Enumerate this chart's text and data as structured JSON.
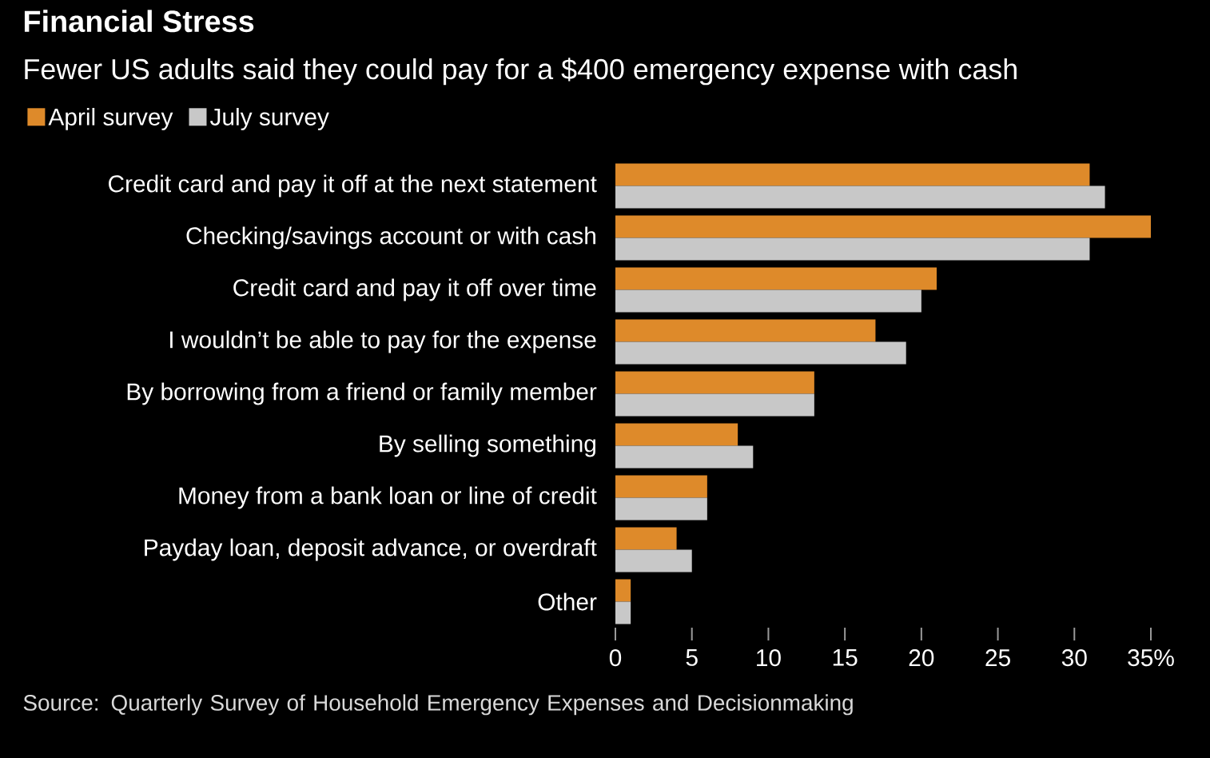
{
  "chart_data": {
    "type": "bar",
    "orientation": "horizontal",
    "title": "Financial Stress",
    "subtitle": "Fewer US adults said they could pay for a $400 emergency expense with cash",
    "categories": [
      "Credit card and pay it off at the next statement",
      "Checking/savings account or with cash",
      "Credit card and pay it off over time",
      "I wouldn’t be able to pay for the expense",
      "By borrowing from a friend or family member",
      "By selling something",
      "Money from a bank loan or line of credit",
      "Payday loan, deposit advance, or overdraft",
      "Other"
    ],
    "series": [
      {
        "name": "April survey",
        "color": "#de8a2a",
        "values": [
          31,
          35,
          21,
          17,
          13,
          8,
          6,
          4,
          1
        ]
      },
      {
        "name": "July survey",
        "color": "#c8c8c8",
        "values": [
          32,
          31,
          20,
          19,
          13,
          9,
          6,
          5,
          1
        ]
      }
    ],
    "xlim": [
      0,
      35
    ],
    "xticks": [
      0,
      5,
      10,
      15,
      20,
      25,
      30,
      {
        "value": 35,
        "label": "35%"
      }
    ],
    "legend": "top left",
    "annotations": [
      "Source: Quarterly Survey of Household Emergency Expenses and Decisionmaking"
    ]
  }
}
